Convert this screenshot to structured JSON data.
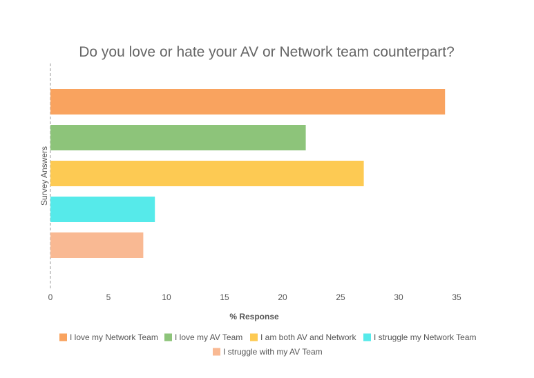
{
  "chart_data": {
    "type": "bar",
    "orientation": "horizontal",
    "title": "Do you love or hate your AV or Network team counterpart?",
    "xlabel": "% Response",
    "ylabel": "Survey Answers",
    "xlim": [
      0,
      35
    ],
    "x_ticks": [
      "0",
      "5",
      "10",
      "15",
      "20",
      "25",
      "30",
      "35"
    ],
    "grid": false,
    "legend_position": "bottom",
    "series": [
      {
        "name": "I love my Network Team",
        "value": 34,
        "color": "#F9A35F"
      },
      {
        "name": "I love my AV Team",
        "value": 22,
        "color": "#8DC47A"
      },
      {
        "name": "I am both AV and Network",
        "value": 27,
        "color": "#FDCA53"
      },
      {
        "name": "I struggle my Network Team",
        "value": 9,
        "color": "#56EAEA"
      },
      {
        "name": "I struggle with my AV Team",
        "value": 8,
        "color": "#F9B993"
      }
    ]
  }
}
